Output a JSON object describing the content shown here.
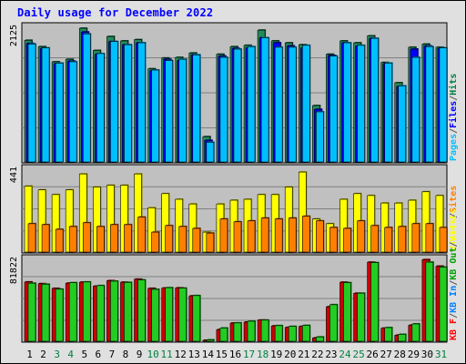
{
  "title": "Daily usage for December 2022",
  "chart_data": [
    {
      "type": "bar",
      "panel": "pages-files-hits",
      "max_label": "2125",
      "right_labels": [
        {
          "text": "Pages",
          "color": "#00c0ff"
        },
        {
          "text": "/",
          "color": "#555555"
        },
        {
          "text": "Files",
          "color": "#0000ff"
        },
        {
          "text": "/",
          "color": "#555555"
        },
        {
          "text": "Hits",
          "color": "#008040"
        }
      ],
      "ymax": 2125,
      "categories": [
        "1",
        "2",
        "3",
        "4",
        "5",
        "6",
        "7",
        "8",
        "9",
        "10",
        "11",
        "12",
        "13",
        "14",
        "15",
        "16",
        "17",
        "18",
        "19",
        "20",
        "21",
        "22",
        "23",
        "24",
        "25",
        "26",
        "27",
        "28",
        "29",
        "30",
        "31"
      ],
      "series": [
        {
          "name": "Hits",
          "color": "#228b5a",
          "values": [
            1920,
            1820,
            1580,
            1620,
            2110,
            1760,
            1980,
            1910,
            1930,
            1470,
            1640,
            1650,
            1720,
            400,
            1700,
            1820,
            1840,
            2080,
            1910,
            1880,
            1850,
            890,
            1700,
            1910,
            1880,
            1990,
            1570,
            1250,
            1810,
            1860,
            1810
          ]
        },
        {
          "name": "Files",
          "color": "#0000ff",
          "values": [
            1870,
            1790,
            1550,
            1590,
            2050,
            1700,
            1900,
            1850,
            1880,
            1440,
            1620,
            1600,
            1690,
            340,
            1670,
            1790,
            1800,
            1960,
            1880,
            1830,
            1800,
            830,
            1680,
            1880,
            1830,
            1950,
            1550,
            1190,
            1780,
            1830,
            1790
          ]
        },
        {
          "name": "Pages",
          "color": "#00bfff",
          "values": [
            1860,
            1800,
            1560,
            1580,
            2020,
            1710,
            1900,
            1850,
            1880,
            1450,
            1600,
            1620,
            1690,
            310,
            1650,
            1780,
            1820,
            1960,
            1810,
            1810,
            1840,
            790,
            1670,
            1880,
            1840,
            1950,
            1560,
            1200,
            1650,
            1820,
            1800
          ]
        }
      ]
    },
    {
      "type": "bar",
      "panel": "visits-sites",
      "max_label": "441",
      "right_labels": [
        {
          "text": "Visits",
          "color": "#ffff00"
        },
        {
          "text": "/",
          "color": "#555555"
        },
        {
          "text": "Sites",
          "color": "#ff8000"
        }
      ],
      "ymax": 441,
      "categories": [
        "1",
        "2",
        "3",
        "4",
        "5",
        "6",
        "7",
        "8",
        "9",
        "10",
        "11",
        "12",
        "13",
        "14",
        "15",
        "16",
        "17",
        "18",
        "19",
        "20",
        "21",
        "22",
        "23",
        "24",
        "25",
        "26",
        "27",
        "28",
        "29",
        "30",
        "31"
      ],
      "series": [
        {
          "name": "Visits",
          "color": "#ffff00",
          "values": [
            351,
            331,
            306,
            331,
            416,
            346,
            356,
            356,
            416,
            236,
            311,
            281,
            256,
            106,
            256,
            276,
            281,
            306,
            306,
            346,
            426,
            176,
            151,
            281,
            311,
            301,
            261,
            261,
            276,
            321,
            301
          ]
        },
        {
          "name": "Sites",
          "color": "#ff8000",
          "values": [
            151,
            146,
            121,
            136,
            156,
            136,
            146,
            146,
            186,
            106,
            141,
            136,
            126,
            101,
            176,
            161,
            166,
            181,
            176,
            181,
            191,
            166,
            131,
            126,
            166,
            141,
            131,
            136,
            151,
            151,
            131
          ]
        }
      ]
    },
    {
      "type": "bar",
      "panel": "kbf-kbin-kbout-visits",
      "max_label": "81822",
      "right_labels": [
        {
          "text": "KB F",
          "color": "#ff0000"
        },
        {
          "text": "/",
          "color": "#555555"
        },
        {
          "text": "KB In",
          "color": "#0080ff"
        },
        {
          "text": "/",
          "color": "#555555"
        },
        {
          "text": "KB Out",
          "color": "#00a000"
        },
        {
          "text": "/",
          "color": "#555555"
        },
        {
          "text": "Visits",
          "color": "#ffff00"
        }
      ],
      "ymax": 81822,
      "categories": [
        "1",
        "2",
        "3",
        "4",
        "5",
        "6",
        "7",
        "8",
        "9",
        "10",
        "11",
        "12",
        "13",
        "14",
        "15",
        "16",
        "17",
        "18",
        "19",
        "20",
        "21",
        "22",
        "23",
        "24",
        "25",
        "26",
        "27",
        "28",
        "29",
        "30",
        "31"
      ],
      "series": [
        {
          "name": "KB F",
          "color": "#cc0000",
          "values": [
            59200,
            57500,
            52800,
            58000,
            59000,
            55000,
            60500,
            59000,
            62000,
            52800,
            53100,
            53300,
            45300,
            700,
            11600,
            18100,
            19100,
            21100,
            15300,
            13800,
            14800,
            3300,
            34500,
            59000,
            47900,
            79000,
            13000,
            6000,
            16000,
            81500,
            75000
          ]
        },
        {
          "name": "KB Out",
          "color": "#22cc22",
          "values": [
            58000,
            57000,
            52000,
            58500,
            59200,
            55600,
            60000,
            58800,
            61200,
            51800,
            53500,
            53000,
            45600,
            1400,
            13200,
            18300,
            20000,
            21100,
            15600,
            14800,
            15800,
            4300,
            36500,
            58500,
            48000,
            78500,
            13600,
            6900,
            17300,
            79000,
            74000
          ]
        }
      ]
    }
  ]
}
